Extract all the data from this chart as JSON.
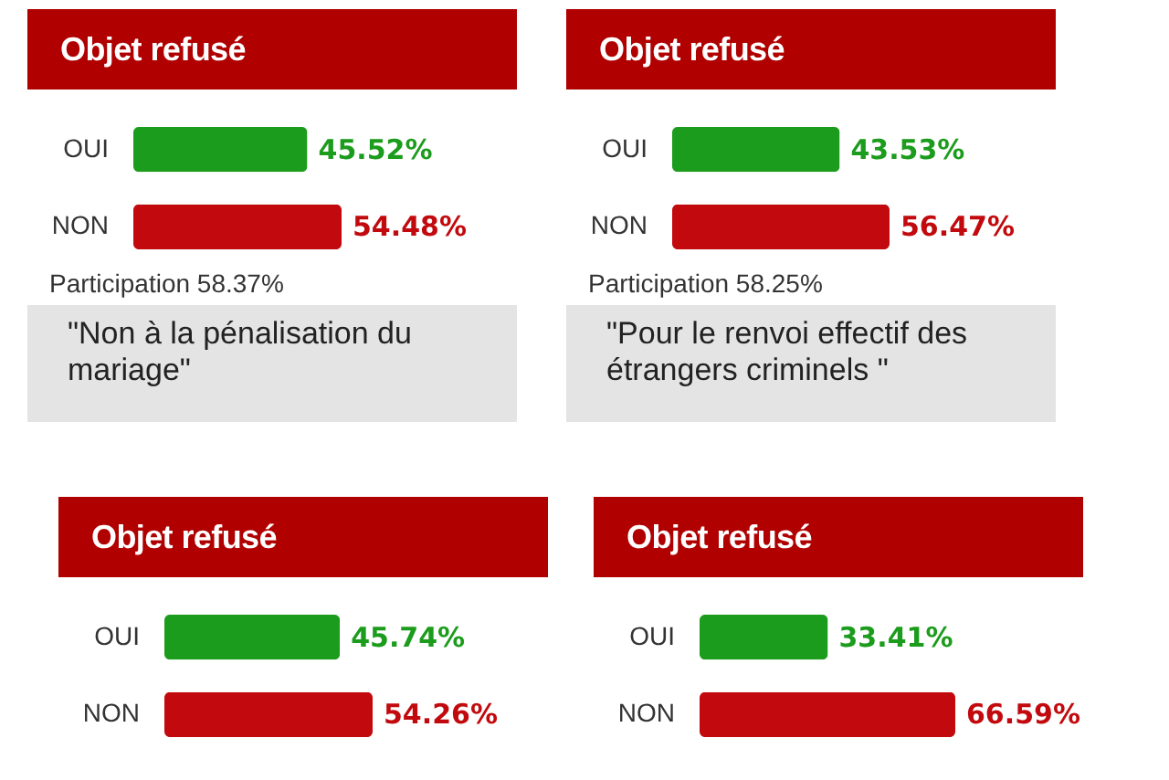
{
  "chart_data": [
    {
      "type": "bar",
      "orientation": "horizontal",
      "title": "Objet refusé",
      "categories": [
        "OUI",
        "NON"
      ],
      "values": [
        45.52,
        54.48
      ],
      "colors": [
        "#1c9c1c",
        "#c20a0e"
      ],
      "value_labels": [
        "45.52%",
        "54.48%"
      ],
      "tick_labels": "y",
      "annotations": [
        "Participation 58.37%",
        "\"Non à la pénalisation du mariage\""
      ]
    },
    {
      "type": "bar",
      "orientation": "horizontal",
      "title": "Objet refusé",
      "categories": [
        "OUI",
        "NON"
      ],
      "values": [
        43.53,
        56.47
      ],
      "colors": [
        "#1c9c1c",
        "#c20a0e"
      ],
      "value_labels": [
        "43.53%",
        "56.47%"
      ],
      "tick_labels": "y",
      "annotations": [
        "Participation 58.25%",
        "\"Pour le renvoi effectif des étrangers criminels \""
      ]
    },
    {
      "type": "bar",
      "orientation": "horizontal",
      "title": "Objet refusé",
      "categories": [
        "OUI",
        "NON"
      ],
      "values": [
        45.74,
        54.26
      ],
      "colors": [
        "#1c9c1c",
        "#c20a0e"
      ],
      "value_labels": [
        "45.74%",
        "54.26%"
      ],
      "tick_labels": "y"
    },
    {
      "type": "bar",
      "orientation": "horizontal",
      "title": "Objet refusé",
      "categories": [
        "OUI",
        "NON"
      ],
      "values": [
        33.41,
        66.59
      ],
      "colors": [
        "#1c9c1c",
        "#c20a0e"
      ],
      "value_labels": [
        "33.41%",
        "66.59%"
      ],
      "tick_labels": "y"
    }
  ]
}
